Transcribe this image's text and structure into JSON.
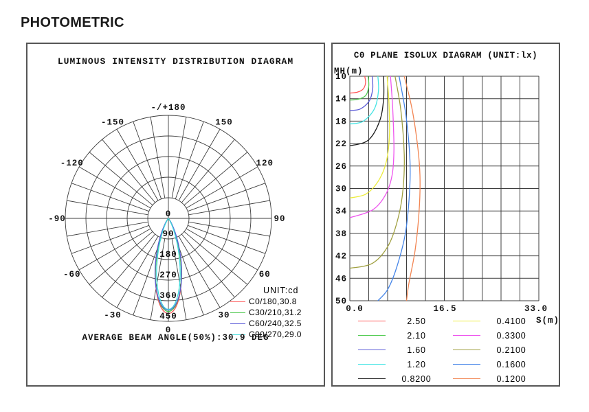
{
  "page": {
    "heading": "PHOTOMETRIC"
  },
  "chart_data": [
    {
      "id": "polar",
      "type": "line",
      "subtype": "polar-intensity",
      "title": "LUMINOUS INTENSITY DISTRIBUTION DIAGRAM",
      "unit_label": "UNIT:cd",
      "caption": "AVERAGE BEAM ANGLE(50%):30.9 DEG",
      "scale_max_cd": 450,
      "rings_cd": [
        90,
        180,
        270,
        360,
        450
      ],
      "center_ring_label": "0",
      "spoke_step_deg": 10,
      "angle_labels": [
        {
          "deg": 180,
          "text": "-/+180"
        },
        {
          "deg": 150,
          "text": "150"
        },
        {
          "deg": 120,
          "text": "120"
        },
        {
          "deg": 90,
          "text": "90"
        },
        {
          "deg": 60,
          "text": "60"
        },
        {
          "deg": 30,
          "text": "30"
        },
        {
          "deg": 0,
          "text": "0"
        },
        {
          "deg": -30,
          "text": "-30"
        },
        {
          "deg": -60,
          "text": "-60"
        },
        {
          "deg": -90,
          "text": "-90"
        },
        {
          "deg": -120,
          "text": "-120"
        },
        {
          "deg": -150,
          "text": "-150"
        }
      ],
      "series": [
        {
          "label": "C0/180,30.8",
          "color": "#ff5555",
          "peak_cd": 416,
          "beam_angle_deg": 30.8
        },
        {
          "label": "C30/210,31.2",
          "color": "#44c544",
          "peak_cd": 407,
          "beam_angle_deg": 31.2
        },
        {
          "label": "C60/240,32.5",
          "color": "#5c5cd8",
          "peak_cd": 401,
          "beam_angle_deg": 32.5
        },
        {
          "label": "C90/270,29.0",
          "color": "#3cdcdc",
          "peak_cd": 398,
          "beam_angle_deg": 29.0
        }
      ]
    },
    {
      "id": "isolux",
      "type": "line",
      "subtype": "isolux-contours",
      "title": "C0 PLANE ISOLUX DIAGRAM (UNIT:lx)",
      "y_axis": {
        "label": "MH(m)",
        "min": 10,
        "max": 50,
        "ticks": [
          10,
          14,
          18,
          22,
          26,
          30,
          34,
          38,
          42,
          46,
          50
        ]
      },
      "x_axis": {
        "label": "S(m)",
        "min": 0,
        "max": 33,
        "ticks": [
          {
            "v": 0,
            "text": "0.0"
          },
          {
            "v": 16.5,
            "text": "16.5"
          },
          {
            "v": 33,
            "text": "33.0"
          }
        ]
      },
      "grid": {
        "columns": 10,
        "rows": 10
      },
      "levels": [
        {
          "value": "2.50",
          "color": "#ff5555",
          "points": [
            [
              2.6,
              10
            ],
            [
              2.75,
              11.2
            ],
            [
              2.3,
              12.3
            ],
            [
              1.3,
              12.85
            ],
            [
              0,
              13.0
            ]
          ]
        },
        {
          "value": "2.10",
          "color": "#55cc55",
          "points": [
            [
              3.2,
              10
            ],
            [
              3.3,
              11.8
            ],
            [
              2.8,
              13.4
            ],
            [
              1.5,
              14.1
            ],
            [
              0,
              14.25
            ]
          ]
        },
        {
          "value": "1.60",
          "color": "#5c5cd8",
          "points": [
            [
              3.9,
              10
            ],
            [
              4.0,
              12.2
            ],
            [
              3.4,
              14.4
            ],
            [
              1.8,
              15.85
            ],
            [
              0,
              16.1
            ]
          ]
        },
        {
          "value": "1.20",
          "color": "#44e4e4",
          "points": [
            [
              4.9,
              10
            ],
            [
              5.0,
              12.6
            ],
            [
              4.3,
              15.8
            ],
            [
              2.3,
              18.05
            ],
            [
              0,
              18.5
            ]
          ]
        },
        {
          "value": "0.8200",
          "color": "#1a1a1a",
          "points": [
            [
              5.9,
              10
            ],
            [
              5.9,
              14
            ],
            [
              5.2,
              18
            ],
            [
              3.2,
              21.4
            ],
            [
              0,
              22.4
            ]
          ]
        },
        {
          "value": "0.4100",
          "color": "#ecec3a",
          "points": [
            [
              6.5,
              10
            ],
            [
              6.85,
              15
            ],
            [
              6.9,
              21
            ],
            [
              6.3,
              25.5
            ],
            [
              4.9,
              28.8
            ],
            [
              2.8,
              31
            ],
            [
              0,
              31.7
            ]
          ]
        },
        {
          "value": "0.3300",
          "color": "#ee55ee",
          "points": [
            [
              7.1,
              10
            ],
            [
              7.5,
              16
            ],
            [
              7.7,
              23
            ],
            [
              7.4,
              27.5
            ],
            [
              6.3,
              31
            ],
            [
              4.0,
              33.8
            ],
            [
              0,
              35.2
            ]
          ]
        },
        {
          "value": "0.2100",
          "color": "#a0a040",
          "points": [
            [
              7.9,
              10
            ],
            [
              8.9,
              16
            ],
            [
              9.5,
              24
            ],
            [
              9.3,
              30
            ],
            [
              8.5,
              35
            ],
            [
              6.8,
              40
            ],
            [
              4.0,
              43.3
            ],
            [
              0,
              44.2
            ]
          ]
        },
        {
          "value": "0.1600",
          "color": "#4585e8",
          "points": [
            [
              8.6,
              10
            ],
            [
              9.8,
              17
            ],
            [
              10.5,
              25
            ],
            [
              10.4,
              31
            ],
            [
              9.7,
              38
            ],
            [
              8.2,
              44
            ],
            [
              6.6,
              48
            ],
            [
              4.9,
              50
            ]
          ]
        },
        {
          "value": "0.1200",
          "color": "#f28552",
          "points": [
            [
              9.5,
              10
            ],
            [
              10.9,
              16
            ],
            [
              11.9,
              23
            ],
            [
              12.25,
              28
            ],
            [
              12.1,
              34
            ],
            [
              11.4,
              41
            ],
            [
              10.3,
              47
            ],
            [
              9.9,
              50
            ]
          ]
        }
      ]
    }
  ]
}
